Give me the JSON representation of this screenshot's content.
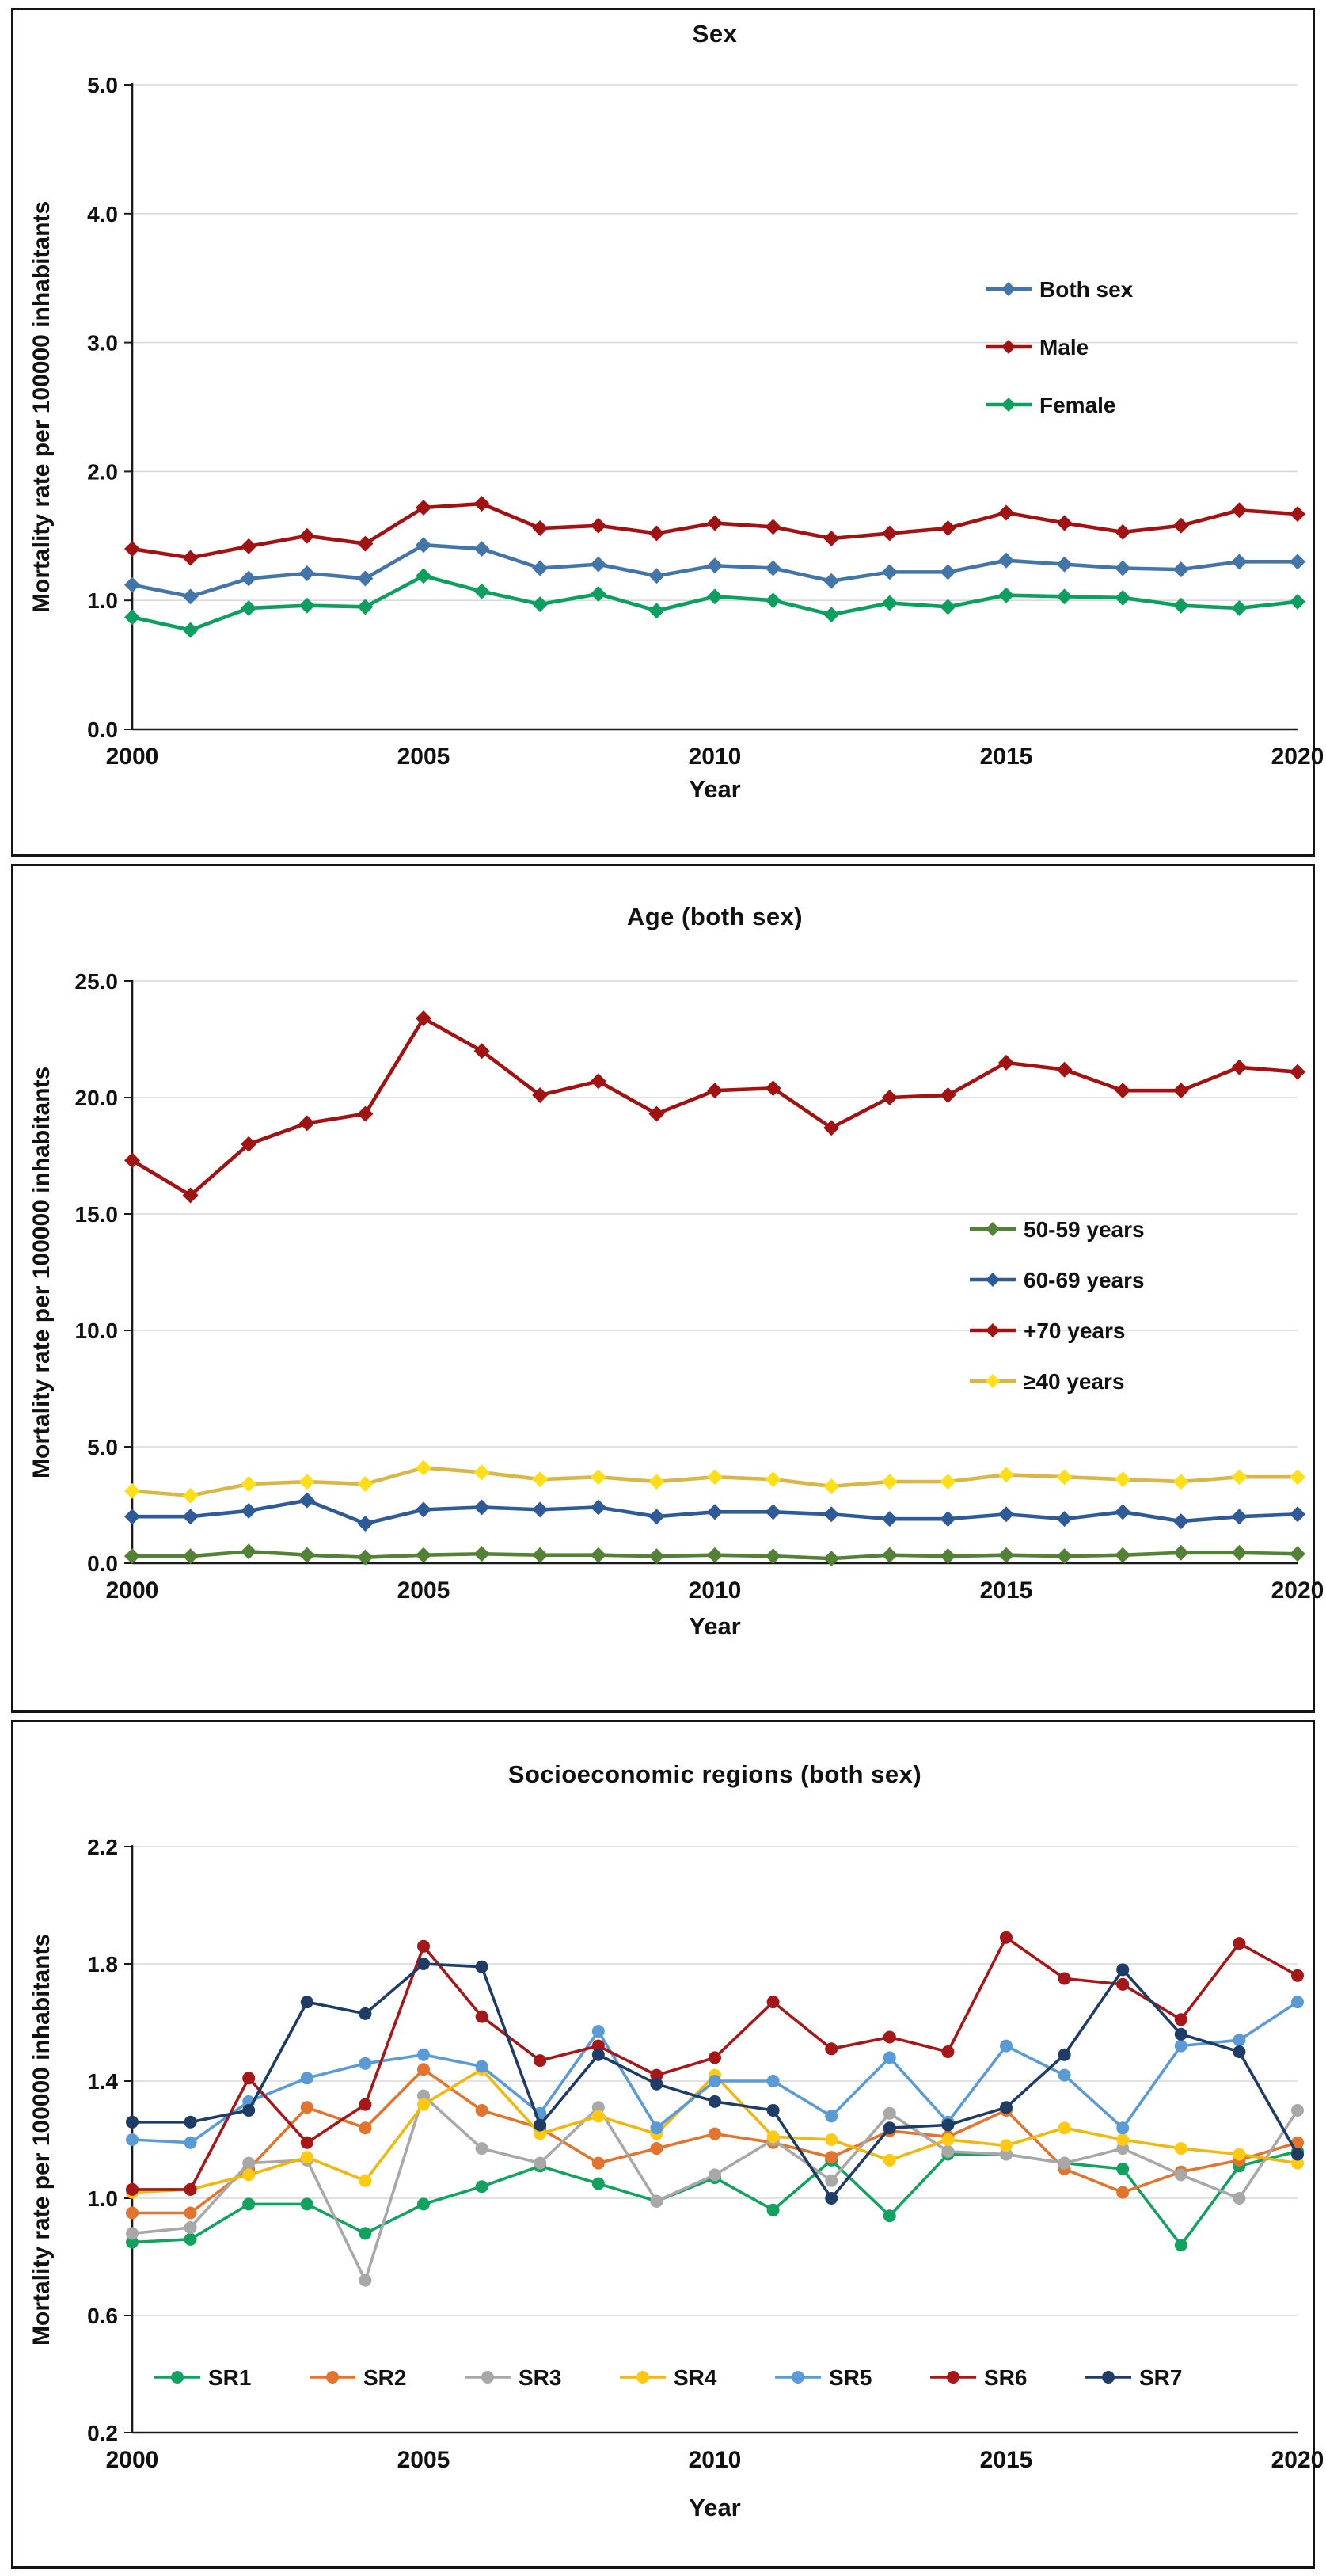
{
  "figure": {
    "background": "#ffffff",
    "panel_border": "#141414",
    "gridline_color": "#d9d9d9",
    "axis_color": "#1a1a1a",
    "text_color": "#111111"
  },
  "chart_data": [
    {
      "type": "line",
      "title": "Sex",
      "ylabel": "Mortality rate per 100000 inhabitants",
      "xlabel": "Year",
      "ylim": [
        0,
        5
      ],
      "ystep": 1,
      "ytick_labels": [
        "0.0",
        "1.0",
        "2.0",
        "3.0",
        "4.0",
        "5.0"
      ],
      "x": [
        2000,
        2001,
        2002,
        2003,
        2004,
        2005,
        2006,
        2007,
        2008,
        2009,
        2010,
        2011,
        2012,
        2013,
        2014,
        2015,
        2016,
        2017,
        2018,
        2019,
        2020
      ],
      "xticks": [
        2000,
        2005,
        2010,
        2015,
        2020
      ],
      "grid": true,
      "legend_position": "right-inside",
      "marker": "diamond",
      "series": [
        {
          "name": "Both sex",
          "color": "#4375A8",
          "values": [
            1.12,
            1.03,
            1.17,
            1.21,
            1.17,
            1.43,
            1.4,
            1.25,
            1.28,
            1.19,
            1.27,
            1.25,
            1.15,
            1.22,
            1.22,
            1.31,
            1.28,
            1.25,
            1.24,
            1.3,
            1.3
          ]
        },
        {
          "name": "Male",
          "color": "#A11212",
          "values": [
            1.4,
            1.33,
            1.42,
            1.5,
            1.44,
            1.72,
            1.75,
            1.56,
            1.58,
            1.52,
            1.6,
            1.57,
            1.48,
            1.52,
            1.56,
            1.68,
            1.6,
            1.53,
            1.58,
            1.7,
            1.67
          ]
        },
        {
          "name": "Female",
          "color": "#0E9E60",
          "values": [
            0.87,
            0.77,
            0.94,
            0.96,
            0.95,
            1.19,
            1.07,
            0.97,
            1.05,
            0.92,
            1.03,
            1.0,
            0.89,
            0.98,
            0.95,
            1.04,
            1.03,
            1.02,
            0.96,
            0.94,
            0.99
          ]
        }
      ]
    },
    {
      "type": "line",
      "title": "Age (both sex)",
      "ylabel": "Mortality rate per 100000 inhabitants",
      "xlabel": "Year",
      "ylim": [
        0,
        25
      ],
      "ystep": 5,
      "ytick_labels": [
        "0.0",
        "5.0",
        "10.0",
        "15.0",
        "20.0",
        "25.0"
      ],
      "x": [
        2000,
        2001,
        2002,
        2003,
        2004,
        2005,
        2006,
        2007,
        2008,
        2009,
        2010,
        2011,
        2012,
        2013,
        2014,
        2015,
        2016,
        2017,
        2018,
        2019,
        2020
      ],
      "xticks": [
        2000,
        2005,
        2010,
        2015,
        2020
      ],
      "grid": true,
      "legend_position": "right-inside",
      "marker": "diamond",
      "series": [
        {
          "name": "50-59 years",
          "color": "#538135",
          "values": [
            0.3,
            0.3,
            0.5,
            0.35,
            0.25,
            0.35,
            0.4,
            0.35,
            0.35,
            0.3,
            0.35,
            0.3,
            0.2,
            0.35,
            0.3,
            0.35,
            0.3,
            0.35,
            0.45,
            0.45,
            0.4
          ]
        },
        {
          "name": "60-69 years",
          "color": "#2E5B97",
          "values": [
            2.0,
            2.0,
            2.25,
            2.7,
            1.7,
            2.3,
            2.4,
            2.3,
            2.4,
            2.0,
            2.2,
            2.2,
            2.1,
            1.9,
            1.9,
            2.1,
            1.9,
            2.2,
            1.8,
            2.0,
            2.1
          ]
        },
        {
          "name": "+70 years",
          "color": "#A11212",
          "values": [
            17.3,
            15.8,
            18.0,
            18.9,
            19.3,
            23.4,
            22.0,
            20.1,
            20.7,
            19.3,
            20.3,
            20.4,
            18.7,
            20.0,
            20.1,
            21.5,
            21.2,
            20.3,
            20.3,
            21.3,
            21.1
          ]
        },
        {
          "name": "≥40 years",
          "color": "#D9B64A",
          "marker_color": "#FFDF1B",
          "values": [
            3.1,
            2.9,
            3.4,
            3.5,
            3.4,
            4.1,
            3.9,
            3.6,
            3.7,
            3.5,
            3.7,
            3.6,
            3.3,
            3.5,
            3.5,
            3.8,
            3.7,
            3.6,
            3.5,
            3.7,
            3.7
          ]
        }
      ]
    },
    {
      "type": "line",
      "title": "Socioeconomic regions (both sex)",
      "ylabel": "Mortality rate per 100000 inhabitants",
      "xlabel": "Year",
      "ylim": [
        0.2,
        2.2
      ],
      "ystep": 0.4,
      "ytick_labels": [
        "0.2",
        "0.6",
        "1.0",
        "1.4",
        "1.8",
        "2.2"
      ],
      "x": [
        2000,
        2001,
        2002,
        2003,
        2004,
        2005,
        2006,
        2007,
        2008,
        2009,
        2010,
        2011,
        2012,
        2013,
        2014,
        2015,
        2016,
        2017,
        2018,
        2019,
        2020
      ],
      "xticks": [
        2000,
        2005,
        2010,
        2015,
        2020
      ],
      "grid": true,
      "legend_position": "bottom-inside",
      "marker": "circle",
      "series": [
        {
          "name": "SR1",
          "color": "#13A15F",
          "values": [
            0.85,
            0.86,
            0.98,
            0.98,
            0.88,
            0.98,
            1.04,
            1.11,
            1.05,
            0.99,
            1.07,
            0.96,
            1.13,
            0.94,
            1.15,
            1.15,
            1.12,
            1.1,
            0.84,
            1.11,
            1.16
          ]
        },
        {
          "name": "SR2",
          "color": "#E1752F",
          "values": [
            0.95,
            0.95,
            1.1,
            1.31,
            1.24,
            1.44,
            1.3,
            1.24,
            1.12,
            1.17,
            1.22,
            1.19,
            1.14,
            1.23,
            1.21,
            1.3,
            1.1,
            1.02,
            1.09,
            1.13,
            1.19
          ]
        },
        {
          "name": "SR3",
          "color": "#A8A8A8",
          "values": [
            0.88,
            0.9,
            1.12,
            1.13,
            0.72,
            1.35,
            1.17,
            1.12,
            1.31,
            0.99,
            1.08,
            1.2,
            1.06,
            1.29,
            1.16,
            1.15,
            1.12,
            1.17,
            1.08,
            1.0,
            1.3
          ]
        },
        {
          "name": "SR4",
          "color": "#EFB810",
          "marker_color": "#FFC914",
          "values": [
            1.02,
            1.03,
            1.08,
            1.14,
            1.06,
            1.32,
            1.44,
            1.22,
            1.28,
            1.22,
            1.42,
            1.21,
            1.2,
            1.13,
            1.2,
            1.18,
            1.24,
            1.2,
            1.17,
            1.15,
            1.12
          ]
        },
        {
          "name": "SR5",
          "color": "#5B9BD5",
          "values": [
            1.2,
            1.19,
            1.33,
            1.41,
            1.46,
            1.49,
            1.45,
            1.29,
            1.57,
            1.24,
            1.4,
            1.4,
            1.28,
            1.48,
            1.26,
            1.52,
            1.42,
            1.24,
            1.52,
            1.54,
            1.67
          ]
        },
        {
          "name": "SR6",
          "color": "#A61717",
          "values": [
            1.03,
            1.03,
            1.41,
            1.19,
            1.32,
            1.86,
            1.62,
            1.47,
            1.52,
            1.42,
            1.48,
            1.67,
            1.51,
            1.55,
            1.5,
            1.89,
            1.75,
            1.73,
            1.61,
            1.87,
            1.76
          ]
        },
        {
          "name": "SR7",
          "color": "#1E3C66",
          "values": [
            1.26,
            1.26,
            1.3,
            1.67,
            1.63,
            1.8,
            1.79,
            1.25,
            1.49,
            1.39,
            1.33,
            1.3,
            1.0,
            1.24,
            1.25,
            1.31,
            1.49,
            1.78,
            1.56,
            1.5,
            1.15
          ]
        }
      ]
    }
  ]
}
